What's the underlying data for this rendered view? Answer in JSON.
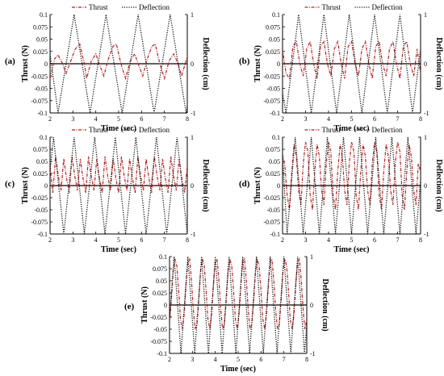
{
  "chart_data": [
    {
      "type": "line",
      "panel_label": "(a)",
      "xlabel": "Time (sec)",
      "ylabel": "Thrust (N)",
      "y2label": "Deflection (cm)",
      "xlim": [
        2,
        8
      ],
      "ylim": [
        -0.1,
        0.1
      ],
      "y2lim": [
        -1,
        1
      ],
      "xticks": [
        "2",
        "3",
        "4",
        "5",
        "6",
        "7",
        "8"
      ],
      "yticks": [
        "0.1",
        "0.075",
        "0.05",
        "0.025",
        "0",
        "-0.025",
        "-0.05",
        "-0.075",
        "-0.1"
      ],
      "y2ticks": [
        "1",
        "0",
        "-1"
      ],
      "legend": {
        "placement": "top-center",
        "entries": [
          "Thrust",
          "Deflection"
        ]
      },
      "series": [
        {
          "name": "Thrust",
          "axis": "left",
          "color": "#b22222",
          "style": "dash-dot",
          "x": [
            2.0,
            2.2,
            2.35,
            2.55,
            2.7,
            2.9,
            3.1,
            3.3,
            3.5,
            3.6,
            3.8,
            4.0,
            4.15,
            4.35,
            4.55,
            4.75,
            4.9,
            5.1,
            5.3,
            5.5,
            5.7,
            5.85,
            6.05,
            6.25,
            6.45,
            6.6,
            6.8,
            7.0,
            7.2,
            7.4,
            7.6,
            7.75,
            8.0
          ],
          "y": [
            -0.03,
            0.01,
            0.018,
            0.0,
            -0.02,
            0.005,
            0.03,
            0.04,
            0.0,
            -0.03,
            0.005,
            0.02,
            0.0,
            -0.025,
            0.01,
            0.035,
            0.04,
            0.0,
            -0.03,
            0.005,
            0.02,
            0.0,
            -0.025,
            0.01,
            0.035,
            0.04,
            0.0,
            -0.03,
            0.005,
            0.02,
            0.0,
            -0.025,
            0.015
          ]
        },
        {
          "name": "Deflection",
          "axis": "right",
          "color": "#111111",
          "style": "dotted",
          "x": [
            2.0,
            2.35,
            3.05,
            3.75,
            4.45,
            5.15,
            5.85,
            6.55,
            7.25,
            7.95,
            8.0
          ],
          "y": [
            0.2,
            -1,
            1,
            -1,
            1,
            -1,
            1,
            -1,
            1,
            -1,
            -0.86
          ]
        }
      ]
    },
    {
      "type": "line",
      "panel_label": "(b)",
      "xlabel": "Time (sec)",
      "ylabel": "Thrust (N)",
      "y2label": "Deflection (cm)",
      "xlim": [
        2,
        8
      ],
      "ylim": [
        -0.1,
        0.1
      ],
      "y2lim": [
        -1,
        1
      ],
      "xticks": [
        "2",
        "3",
        "4",
        "5",
        "6",
        "7",
        "8"
      ],
      "yticks": [
        "0.1",
        "0.075",
        "0.05",
        "0.025",
        "0",
        "-0.025",
        "-0.05",
        "-0.075",
        "-0.1"
      ],
      "y2ticks": [
        "1",
        "0",
        "-1"
      ],
      "legend": {
        "placement": "top-center",
        "entries": [
          "Thrust",
          "Deflection"
        ]
      },
      "series": [
        {
          "name": "Thrust",
          "axis": "left",
          "color": "#b22222",
          "style": "dash-dot",
          "x": [
            2.0,
            2.15,
            2.3,
            2.45,
            2.6,
            2.75,
            2.9,
            3.05,
            3.2,
            3.35,
            3.5,
            3.65,
            3.8,
            3.95,
            4.1,
            4.25,
            4.4,
            4.55,
            4.7,
            4.85,
            5.0,
            5.15,
            5.3,
            5.45,
            5.6,
            5.75,
            5.9,
            6.05,
            6.2,
            6.35,
            6.5,
            6.65,
            6.8,
            6.95,
            7.1,
            7.25,
            7.4,
            7.55,
            7.7,
            7.85,
            8.0
          ],
          "y": [
            0.03,
            -0.02,
            -0.03,
            0.035,
            0.045,
            0.0,
            -0.025,
            0.03,
            0.045,
            0.0,
            -0.03,
            0.035,
            0.045,
            0.0,
            -0.025,
            0.03,
            0.045,
            0.0,
            -0.03,
            0.035,
            0.045,
            0.0,
            -0.025,
            0.03,
            0.045,
            0.0,
            -0.03,
            0.035,
            0.045,
            0.0,
            -0.025,
            0.03,
            0.045,
            0.0,
            -0.03,
            0.035,
            0.045,
            0.0,
            -0.025,
            0.03,
            -0.02
          ]
        },
        {
          "name": "Deflection",
          "axis": "right",
          "color": "#111111",
          "style": "dotted",
          "x": [
            2.0,
            2.15,
            2.7,
            3.25,
            3.8,
            4.35,
            4.9,
            5.45,
            6.0,
            6.55,
            7.1,
            7.65,
            8.0
          ],
          "y": [
            -0.6,
            -1,
            1,
            -1,
            1,
            -1,
            1,
            -1,
            1,
            -1,
            1,
            -1,
            0.3
          ]
        }
      ]
    },
    {
      "type": "line",
      "panel_label": "(c)",
      "xlabel": "Time (sec)",
      "ylabel": "Thrust (N)",
      "y2label": "Deflection (cm)",
      "xlim": [
        2,
        8
      ],
      "ylim": [
        -0.1,
        0.1
      ],
      "y2lim": [
        -1,
        1
      ],
      "xticks": [
        "2",
        "3",
        "4",
        "5",
        "6",
        "7",
        "8"
      ],
      "yticks": [
        "0.1",
        "0.075",
        "0.05",
        "0.025",
        "0",
        "-0.025",
        "-0.05",
        "-0.075",
        "-0.1"
      ],
      "y2ticks": [
        "1",
        "0",
        "-1"
      ],
      "legend": {
        "placement": "top-center",
        "entries": [
          "Thrust",
          "Deflection"
        ]
      },
      "series": [
        {
          "name": "Thrust",
          "axis": "left",
          "color": "#b22222",
          "style": "dash-dot",
          "x": [
            2.0,
            2.12,
            2.24,
            2.36,
            2.48,
            2.6,
            2.72,
            2.84,
            2.96,
            3.08,
            3.2,
            3.32,
            3.44,
            3.56,
            3.68,
            3.8,
            3.92,
            4.04,
            4.16,
            4.28,
            4.4,
            4.52,
            4.64,
            4.76,
            4.88,
            5.0,
            5.12,
            5.24,
            5.36,
            5.48,
            5.6,
            5.72,
            5.84,
            5.96,
            6.08,
            6.2,
            6.32,
            6.44,
            6.56,
            6.68,
            6.8,
            6.92,
            7.04,
            7.16,
            7.28,
            7.4,
            7.52,
            7.64,
            7.76,
            7.88,
            8.0
          ],
          "y": [
            0.04,
            -0.015,
            0.06,
            0.02,
            -0.01,
            0.055,
            0.015,
            -0.015,
            0.06,
            0.02,
            -0.01,
            0.055,
            0.015,
            -0.015,
            0.06,
            0.02,
            -0.01,
            0.055,
            0.015,
            -0.015,
            0.06,
            0.02,
            -0.01,
            0.055,
            0.015,
            -0.015,
            0.06,
            0.02,
            -0.01,
            0.055,
            0.015,
            -0.015,
            0.06,
            0.02,
            -0.01,
            0.055,
            0.015,
            -0.015,
            0.06,
            0.02,
            -0.01,
            0.055,
            0.015,
            -0.015,
            0.06,
            0.02,
            -0.01,
            0.055,
            0.015,
            -0.015,
            0.04
          ]
        },
        {
          "name": "Deflection",
          "axis": "right",
          "color": "#111111",
          "style": "dotted",
          "x": [
            2.0,
            2.15,
            2.6,
            3.05,
            3.5,
            3.95,
            4.4,
            4.85,
            5.3,
            5.75,
            6.2,
            6.65,
            7.1,
            7.55,
            8.0
          ],
          "y": [
            0.3,
            1,
            -1,
            1,
            -1,
            1,
            -1,
            1,
            -1,
            1,
            -1,
            1,
            -1,
            1,
            -1
          ]
        }
      ]
    },
    {
      "type": "line",
      "panel_label": "(d)",
      "xlabel": "Time (sec)",
      "ylabel": "Thrust (N)",
      "y2label": "Deflection (cm)",
      "xlim": [
        2,
        8
      ],
      "ylim": [
        -0.1,
        0.1
      ],
      "y2lim": [
        -1,
        1
      ],
      "xticks": [
        "2",
        "3",
        "4",
        "5",
        "6",
        "7",
        "8"
      ],
      "yticks": [
        "0.1",
        "0.075",
        "0.05",
        "0.025",
        "0",
        "-0.025",
        "-0.05",
        "-0.075",
        "-0.1"
      ],
      "y2ticks": [
        "1",
        "0",
        "-1"
      ],
      "legend": {
        "placement": "top-center",
        "entries": [
          "Thrust",
          "Deflection"
        ]
      },
      "series": [
        {
          "name": "Thrust",
          "axis": "left",
          "color": "#b22222",
          "style": "dash-dot",
          "x": [
            2.0,
            2.1,
            2.2,
            2.3,
            2.4,
            2.5,
            2.6,
            2.7,
            2.8,
            2.9,
            3.0,
            3.1,
            3.2,
            3.3,
            3.4,
            3.5,
            3.6,
            3.7,
            3.8,
            3.9,
            4.0,
            4.1,
            4.2,
            4.3,
            4.4,
            4.5,
            4.6,
            4.7,
            4.8,
            4.9,
            5.0,
            5.1,
            5.2,
            5.3,
            5.4,
            5.5,
            5.6,
            5.7,
            5.8,
            5.9,
            6.0,
            6.1,
            6.2,
            6.3,
            6.4,
            6.5,
            6.6,
            6.7,
            6.8,
            6.9,
            7.0,
            7.1,
            7.2,
            7.3,
            7.4,
            7.5,
            7.6,
            7.7,
            7.8,
            7.9,
            8.0
          ],
          "y": [
            0.065,
            0.04,
            -0.02,
            -0.05,
            0.03,
            0.085,
            0.06,
            -0.01,
            -0.04,
            0.045,
            0.09,
            0.07,
            -0.02,
            -0.05,
            0.03,
            0.085,
            0.06,
            -0.01,
            -0.04,
            0.045,
            0.09,
            0.07,
            -0.02,
            -0.05,
            0.03,
            0.085,
            0.06,
            -0.01,
            -0.04,
            0.045,
            0.09,
            0.07,
            -0.02,
            -0.05,
            0.03,
            0.085,
            0.06,
            -0.01,
            -0.04,
            0.045,
            0.09,
            0.07,
            -0.02,
            -0.05,
            0.03,
            0.085,
            0.06,
            -0.01,
            -0.04,
            0.045,
            0.09,
            0.07,
            -0.02,
            -0.05,
            0.03,
            0.085,
            0.06,
            -0.01,
            -0.04,
            0.045,
            0.03
          ]
        },
        {
          "name": "Deflection",
          "axis": "right",
          "color": "#111111",
          "style": "dotted",
          "x": [
            2.0,
            2.2,
            2.55,
            2.9,
            3.25,
            3.6,
            3.95,
            4.3,
            4.65,
            5.0,
            5.35,
            5.7,
            6.05,
            6.4,
            6.75,
            7.1,
            7.45,
            7.8,
            8.0
          ],
          "y": [
            0.6,
            -1,
            1,
            -1,
            1,
            -1,
            1,
            -1,
            1,
            -1,
            1,
            -1,
            1,
            -1,
            1,
            -1,
            1,
            -1,
            0.1
          ]
        }
      ]
    },
    {
      "type": "line",
      "panel_label": "(e)",
      "xlabel": "Time (sec)",
      "ylabel": "Thrust (N)",
      "y2label": "Deflection (cm)",
      "xlim": [
        2,
        8
      ],
      "ylim": [
        -0.1,
        0.1
      ],
      "y2lim": [
        -1,
        1
      ],
      "xticks": [
        "2",
        "3",
        "4",
        "5",
        "6",
        "7",
        "8"
      ],
      "yticks": [
        "0.1",
        "0.075",
        "0.05",
        "0.025",
        "0",
        "-0.025",
        "-0.05",
        "-0.075",
        "-0.1"
      ],
      "y2ticks": [
        "1",
        "0",
        "-1"
      ],
      "legend": null,
      "series": [
        {
          "name": "Thrust",
          "axis": "left",
          "color": "#b22222",
          "style": "dash-dot",
          "x": [
            2.0,
            2.08,
            2.16,
            2.24,
            2.32,
            2.4,
            2.48,
            2.56,
            2.64,
            2.72,
            2.8,
            2.88,
            2.96,
            3.04,
            3.12,
            3.2,
            3.28,
            3.36,
            3.44,
            3.52,
            3.6,
            3.68,
            3.76,
            3.84,
            3.92,
            4.0,
            4.08,
            4.16,
            4.24,
            4.32,
            4.4,
            4.48,
            4.56,
            4.64,
            4.72,
            4.8,
            4.88,
            4.96,
            5.04,
            5.12,
            5.2,
            5.28,
            5.36,
            5.44,
            5.52,
            5.6,
            5.68,
            5.76,
            5.84,
            5.92,
            6.0,
            6.08,
            6.16,
            6.24,
            6.32,
            6.4,
            6.48,
            6.56,
            6.64,
            6.72,
            6.8,
            6.88,
            6.96,
            7.04,
            7.12,
            7.2,
            7.28,
            7.36,
            7.44,
            7.52,
            7.6,
            7.68,
            7.76,
            7.84,
            7.92,
            8.0
          ],
          "y": [
            -0.04,
            0.01,
            0.07,
            0.095,
            0.08,
            0.03,
            -0.03,
            -0.05,
            -0.02,
            0.04,
            0.09,
            0.095,
            0.05,
            -0.01,
            -0.05,
            -0.04,
            0.01,
            0.07,
            0.095,
            0.08,
            0.03,
            -0.03,
            -0.05,
            -0.02,
            0.04,
            0.09,
            0.095,
            0.05,
            -0.01,
            -0.05,
            -0.04,
            0.01,
            0.07,
            0.095,
            0.08,
            0.03,
            -0.03,
            -0.05,
            -0.02,
            0.04,
            0.09,
            0.095,
            0.05,
            -0.01,
            -0.05,
            -0.04,
            0.01,
            0.07,
            0.095,
            0.08,
            0.03,
            -0.03,
            -0.05,
            -0.02,
            0.04,
            0.09,
            0.095,
            0.05,
            -0.01,
            -0.05,
            -0.04,
            0.01,
            0.07,
            0.095,
            0.08,
            0.03,
            -0.03,
            -0.05,
            -0.02,
            0.04,
            0.09,
            0.095,
            0.05,
            -0.01,
            -0.05,
            -0.03
          ]
        },
        {
          "name": "Deflection",
          "axis": "right",
          "color": "#111111",
          "style": "dotted",
          "x": [
            2.0,
            2.2,
            2.5,
            2.8,
            3.1,
            3.4,
            3.7,
            4.0,
            4.3,
            4.6,
            4.9,
            5.2,
            5.5,
            5.8,
            6.1,
            6.4,
            6.7,
            7.0,
            7.3,
            7.6,
            7.9,
            8.0
          ],
          "y": [
            -0.3,
            1,
            -1,
            1,
            -1,
            1,
            -1,
            1,
            -1,
            1,
            -1,
            1,
            -1,
            1,
            -1,
            1,
            -1,
            1,
            -1,
            1,
            -1,
            -0.4
          ]
        }
      ]
    }
  ]
}
